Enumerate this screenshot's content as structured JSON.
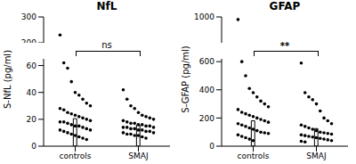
{
  "chart_data": [
    {
      "type": "bar",
      "title": "NfL",
      "y_label": "S-NfL (pg/ml)",
      "categories": [
        "controls",
        "SMAJ"
      ],
      "values": [
        20.5,
        15.8
      ],
      "points": [
        [
          230,
          62,
          58,
          48,
          40,
          38,
          35,
          32,
          30,
          28,
          27,
          25,
          24,
          23,
          22,
          21,
          20,
          19,
          18,
          18,
          17,
          16,
          15,
          15,
          14,
          13,
          12,
          12,
          11,
          10,
          9,
          8,
          7,
          6,
          5
        ],
        [
          42,
          35,
          30,
          28,
          25,
          23,
          22,
          21,
          20,
          19,
          18,
          17,
          17,
          16,
          16,
          15,
          15,
          14,
          14,
          14,
          13,
          13,
          12,
          12,
          11,
          11,
          10,
          10,
          9,
          9,
          8,
          8,
          7,
          6
        ]
      ],
      "annotation": "ns",
      "ylim": [
        0,
        65
      ],
      "yticks": [
        0,
        20,
        40,
        60
      ],
      "ylim_upper": [
        200,
        300
      ],
      "yticks_upper": [
        200,
        300
      ],
      "color": "#000000"
    },
    {
      "type": "bar",
      "title": "GFAP",
      "y_label": "S-GFAP (pg/ml)",
      "categories": [
        "controls",
        "SMAJ"
      ],
      "values": [
        180,
        125
      ],
      "points": [
        [
          990,
          600,
          500,
          410,
          380,
          350,
          320,
          300,
          280,
          260,
          240,
          230,
          220,
          210,
          200,
          190,
          180,
          170,
          160,
          150,
          140,
          130,
          120,
          110,
          100,
          95,
          90,
          80,
          70,
          60,
          50,
          40
        ],
        [
          590,
          380,
          350,
          330,
          300,
          250,
          200,
          180,
          160,
          150,
          140,
          130,
          120,
          110,
          100,
          95,
          90,
          85,
          80,
          75,
          70,
          65,
          60,
          55,
          50,
          45,
          40,
          35,
          30
        ]
      ],
      "annotation": "**",
      "ylim": [
        0,
        620
      ],
      "yticks": [
        0,
        200,
        400,
        600
      ],
      "ylim_upper": [
        900,
        1000
      ],
      "yticks_upper": [
        1000
      ],
      "color": "#000000"
    }
  ]
}
